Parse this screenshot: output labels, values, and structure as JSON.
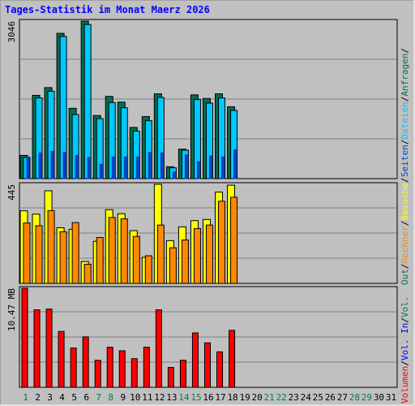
{
  "title": "Tages-Statistik im Monat Maerz 2026",
  "colors": {
    "background": "#c0c0c0",
    "title": "#0000ff",
    "anfragen": "#006e50",
    "dateien": "#00c8ff",
    "seiten": "#0044cc",
    "besuche": "#ffff00",
    "rechner": "#ff8800",
    "vol_out": "#008040",
    "vol_in": "#0000ff",
    "volumen": "#ff0000",
    "weekday_text": "#000000",
    "weekend_text": "#008040"
  },
  "right_labels": {
    "panel1": [
      {
        "text": "Anfragen",
        "color": "#006e50"
      },
      {
        "text": "Dateien",
        "color": "#00c8ff"
      },
      {
        "text": "Seiten",
        "color": "#0044cc"
      }
    ],
    "panel2": [
      {
        "text": "Besuche",
        "color": "#ffff00"
      },
      {
        "text": "Rechner",
        "color": "#ff8800"
      },
      {
        "text": "Out",
        "color": "#008040"
      }
    ],
    "panel3": [
      {
        "text": "Vol.",
        "color": "#008040"
      },
      {
        "text": "Vol. In",
        "color": "#0000ff"
      },
      {
        "text": "Volumen",
        "color": "#ff0000"
      }
    ],
    "separator": "/"
  },
  "chart_data": [
    {
      "type": "bar",
      "y_max_label": "3046",
      "ylim": [
        0,
        3046
      ],
      "categories": [
        "1",
        "2",
        "3",
        "4",
        "5",
        "6",
        "7",
        "8",
        "9",
        "10",
        "11",
        "12",
        "13",
        "14",
        "15",
        "16",
        "17",
        "18",
        "19",
        "20",
        "21",
        "22",
        "23",
        "24",
        "25",
        "26",
        "27",
        "28",
        "29",
        "30",
        "31"
      ],
      "series": [
        {
          "name": "Anfragen",
          "values": [
            449,
            1610,
            1760,
            2810,
            1360,
            3046,
            1220,
            1590,
            1480,
            990,
            1200,
            1640,
            230,
            570,
            1620,
            1550,
            1640,
            1390,
            0,
            0,
            0,
            0,
            0,
            0,
            0,
            0,
            0,
            0,
            0,
            0,
            0
          ]
        },
        {
          "name": "Dateien",
          "values": [
            410,
            1560,
            1690,
            2750,
            1240,
            2980,
            1160,
            1470,
            1370,
            920,
            1120,
            1570,
            210,
            550,
            1530,
            1460,
            1560,
            1320,
            0,
            0,
            0,
            0,
            0,
            0,
            0,
            0,
            0,
            0,
            0,
            0,
            0
          ]
        },
        {
          "name": "Seiten",
          "values": [
            420,
            500,
            530,
            510,
            450,
            410,
            280,
            420,
            420,
            420,
            510,
            500,
            130,
            460,
            330,
            440,
            420,
            560,
            0,
            0,
            0,
            0,
            0,
            0,
            0,
            0,
            0,
            0,
            0,
            0,
            0
          ]
        }
      ],
      "weekend_days": [
        "1",
        "7",
        "8",
        "14",
        "15",
        "21",
        "22",
        "28",
        "29"
      ]
    },
    {
      "type": "bar",
      "y_max_label": "445",
      "ylim": [
        0,
        445
      ],
      "series": [
        {
          "name": "Besuche",
          "values": [
            326,
            311,
            416,
            250,
            243,
            98,
            189,
            331,
            313,
            237,
            117,
            445,
            192,
            254,
            282,
            287,
            410,
            441,
            0,
            0,
            0,
            0,
            0,
            0,
            0,
            0,
            0,
            0,
            0,
            0,
            0
          ]
        },
        {
          "name": "Rechner",
          "values": [
            271,
            259,
            327,
            232,
            273,
            86,
            206,
            296,
            290,
            211,
            124,
            262,
            160,
            195,
            246,
            262,
            369,
            387,
            0,
            0,
            0,
            0,
            0,
            0,
            0,
            0,
            0,
            0,
            0,
            0,
            0
          ]
        }
      ]
    },
    {
      "type": "bar",
      "y_max_label": "10.47 MB",
      "ylim": [
        0,
        10.47
      ],
      "series": [
        {
          "name": "Volumen",
          "values": [
            10.47,
            8.19,
            8.27,
            5.91,
            4.15,
            5.33,
            2.86,
            4.24,
            3.86,
            3.03,
            4.24,
            8.19,
            2.1,
            2.86,
            5.75,
            4.7,
            3.75,
            6.02,
            0,
            0,
            0,
            0,
            0,
            0,
            0,
            0,
            0,
            0,
            0,
            0,
            0
          ]
        }
      ]
    }
  ]
}
